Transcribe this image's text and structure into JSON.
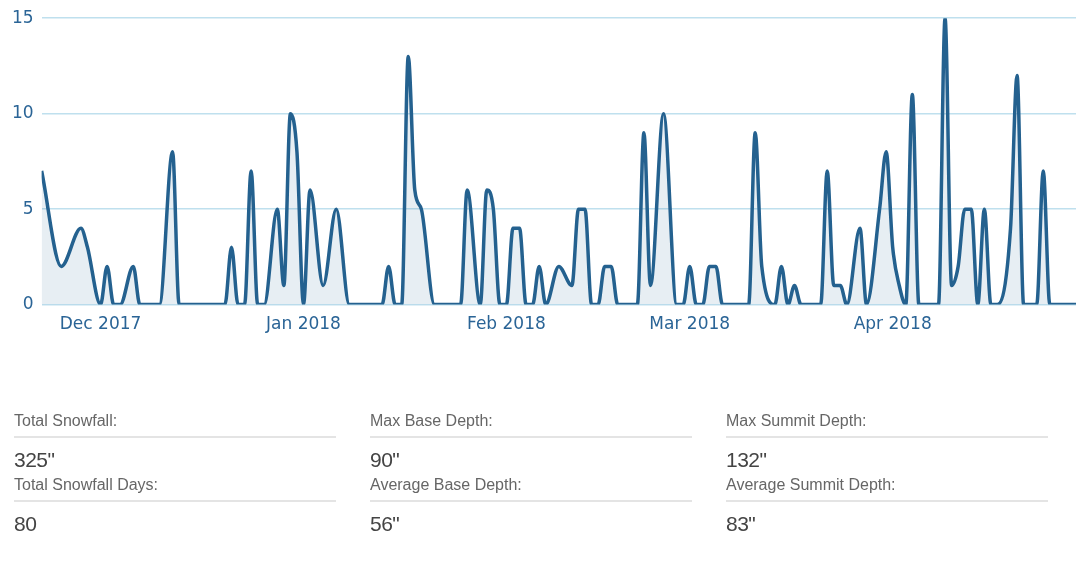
{
  "chart_data": {
    "type": "area",
    "x": [
      "2017-11-22",
      "2017-11-25",
      "2017-11-28",
      "2017-11-29",
      "2017-12-01",
      "2017-12-02",
      "2017-12-03",
      "2017-12-04",
      "2017-12-06",
      "2017-12-07",
      "2017-12-10",
      "2017-12-12",
      "2017-12-13",
      "2017-12-20",
      "2017-12-21",
      "2017-12-22",
      "2017-12-23",
      "2017-12-24",
      "2017-12-25",
      "2017-12-26",
      "2017-12-28",
      "2017-12-29",
      "2017-12-30",
      "2017-12-31",
      "2018-01-01",
      "2018-01-02",
      "2018-01-04",
      "2018-01-06",
      "2018-01-08",
      "2018-01-13",
      "2018-01-14",
      "2018-01-15",
      "2018-01-16",
      "2018-01-17",
      "2018-01-18",
      "2018-01-19",
      "2018-01-21",
      "2018-01-25",
      "2018-01-26",
      "2018-01-28",
      "2018-01-29",
      "2018-01-30",
      "2018-01-31",
      "2018-02-01",
      "2018-02-02",
      "2018-02-03",
      "2018-02-04",
      "2018-02-05",
      "2018-02-06",
      "2018-02-07",
      "2018-02-09",
      "2018-02-11",
      "2018-02-12",
      "2018-02-13",
      "2018-02-14",
      "2018-02-15",
      "2018-02-16",
      "2018-02-17",
      "2018-02-18",
      "2018-02-21",
      "2018-02-22",
      "2018-02-23",
      "2018-02-25",
      "2018-02-27",
      "2018-02-28",
      "2018-03-01",
      "2018-03-02",
      "2018-03-03",
      "2018-03-04",
      "2018-03-05",
      "2018-03-06",
      "2018-03-10",
      "2018-03-11",
      "2018-03-12",
      "2018-03-14",
      "2018-03-15",
      "2018-03-16",
      "2018-03-17",
      "2018-03-18",
      "2018-03-21",
      "2018-03-22",
      "2018-03-23",
      "2018-03-24",
      "2018-03-25",
      "2018-03-27",
      "2018-03-28",
      "2018-03-30",
      "2018-03-31",
      "2018-04-01",
      "2018-04-02",
      "2018-04-03",
      "2018-04-04",
      "2018-04-05",
      "2018-04-08",
      "2018-04-09",
      "2018-04-10",
      "2018-04-11",
      "2018-04-12",
      "2018-04-13",
      "2018-04-14",
      "2018-04-15",
      "2018-04-16",
      "2018-04-17",
      "2018-04-19",
      "2018-04-20",
      "2018-04-21",
      "2018-04-23",
      "2018-04-24",
      "2018-04-25",
      "2018-04-29"
    ],
    "series": [
      {
        "color": "#24618f",
        "values": [
          7,
          2,
          4,
          3,
          0,
          2,
          0,
          0,
          2,
          0,
          0,
          8,
          0,
          0,
          3,
          0,
          0,
          7,
          0,
          0,
          5,
          1,
          10,
          8,
          0,
          6,
          1,
          5,
          0,
          0,
          2,
          0,
          0,
          13,
          6,
          5,
          0,
          0,
          6,
          0,
          6,
          5,
          0,
          0,
          4,
          4,
          0,
          0,
          2,
          0,
          2,
          1,
          5,
          5,
          0,
          0,
          2,
          2,
          0,
          0,
          9,
          1,
          10,
          0,
          0,
          2,
          0,
          0,
          2,
          2,
          0,
          0,
          9,
          2,
          0,
          2,
          0,
          1,
          0,
          0,
          7,
          1,
          1,
          0,
          4,
          0,
          5,
          8,
          3,
          1,
          0,
          11,
          0,
          0,
          15,
          1,
          2,
          5,
          5,
          0,
          5,
          0,
          0,
          4,
          12,
          0,
          0,
          7,
          0,
          0
        ]
      }
    ],
    "xlim": [
      "2017-11-22",
      "2018-04-29"
    ],
    "xticks": [
      {
        "value": "2017-12-01",
        "label": "Dec 2017"
      },
      {
        "value": "2018-01-01",
        "label": "Jan 2018"
      },
      {
        "value": "2018-02-01",
        "label": "Feb 2018"
      },
      {
        "value": "2018-03-01",
        "label": "Mar 2018"
      },
      {
        "value": "2018-04-01",
        "label": "Apr 2018"
      }
    ],
    "ylim": [
      0,
      15
    ],
    "yticks": [
      0,
      5,
      10,
      15
    ],
    "grid": "y",
    "marker": "none",
    "line_style": "solid",
    "annotations": [
      "Total Snowfall:",
      "325\"",
      "Max Base Depth:",
      "90\"",
      "Max Summit Depth:",
      "132\"",
      "Total Snowfall Days:",
      "80",
      "Average Base Depth:",
      "56\"",
      "Average Summit Depth:",
      "83\""
    ]
  }
}
